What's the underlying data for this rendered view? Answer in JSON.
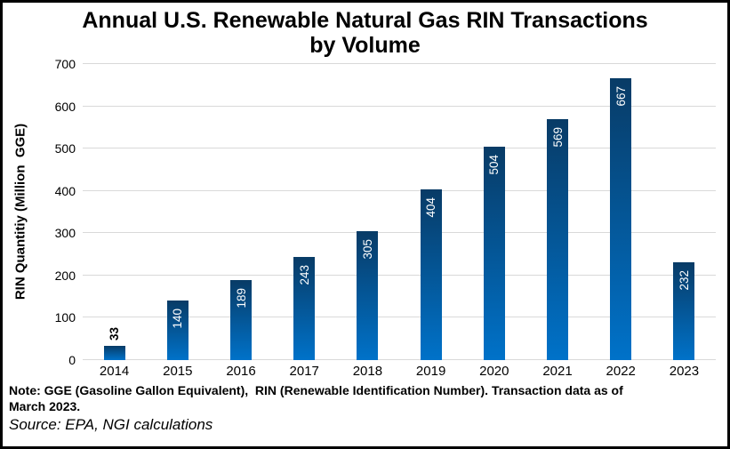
{
  "header": {
    "title_line1": "Annual U.S. Renewable Natural Gas RIN Transactions",
    "title_line2": "by Volume"
  },
  "chart_data": {
    "type": "bar",
    "title": "Annual U.S. Renewable Natural Gas RIN Transactions by Volume",
    "categories": [
      "2014",
      "2015",
      "2016",
      "2017",
      "2018",
      "2019",
      "2020",
      "2021",
      "2022",
      "2023"
    ],
    "values": [
      33,
      140,
      189,
      243,
      305,
      404,
      504,
      569,
      667,
      232
    ],
    "xlabel": "",
    "ylabel": "RIN Quantitiy (Million  GGE)",
    "ylim": [
      0,
      700
    ],
    "yticks": [
      0,
      100,
      200,
      300,
      400,
      500,
      600,
      700
    ],
    "grid": "horizontal",
    "legend": "none",
    "colors": {
      "bar_gradient_top": "#083b66",
      "bar_gradient_bottom": "#0072c9",
      "gridline": "#d9d9d9",
      "label_inside": "#ffffff",
      "label_outside": "#000000"
    },
    "data_label_rotation": "vertical"
  },
  "footer": {
    "note": "Note: GGE (Gasoline Gallon Equivalent),  RIN (Renewable Identification Number). Transaction data as of\nMarch 2023.",
    "source": "Source: EPA, NGI calculations"
  }
}
